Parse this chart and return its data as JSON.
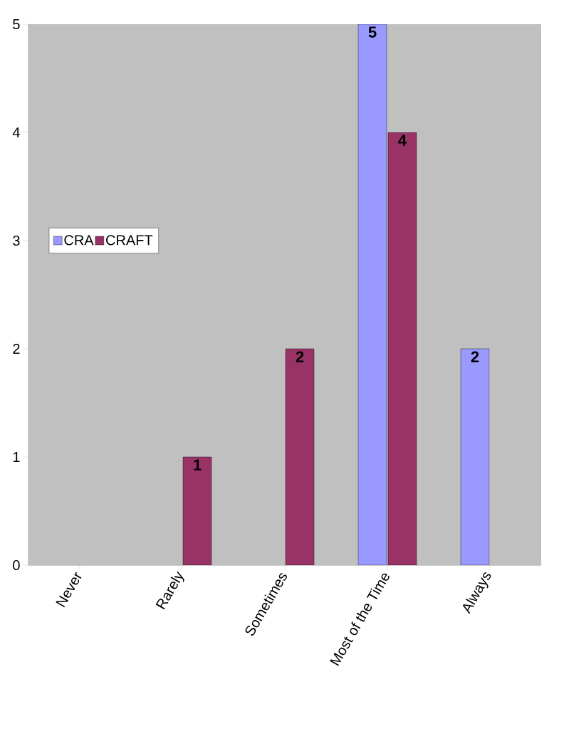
{
  "chart_data": {
    "type": "bar",
    "categories": [
      "Never",
      "Rarely",
      "Sometimes",
      "Most of the Time",
      "Always"
    ],
    "series": [
      {
        "name": "CRA",
        "color": "#9999ff",
        "values": [
          null,
          null,
          null,
          5,
          2
        ]
      },
      {
        "name": "CRAFT",
        "color": "#993366",
        "values": [
          null,
          1,
          2,
          4,
          null
        ]
      }
    ],
    "ylim": [
      0,
      5
    ],
    "yticks": [
      0,
      1,
      2,
      3,
      4,
      5
    ],
    "grid": false,
    "legend": "left",
    "data_labels": true
  }
}
